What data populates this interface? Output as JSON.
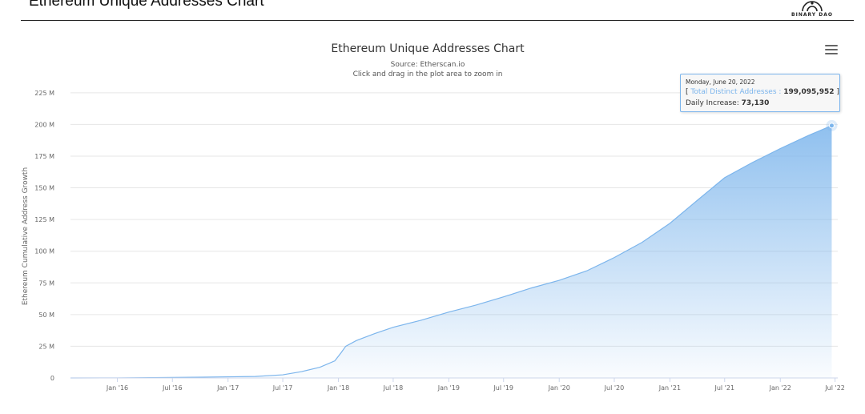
{
  "header": {
    "title": "Ethereum Unique Addresses Chart",
    "logo_text": "BINARY DAO"
  },
  "chart_data": {
    "type": "area",
    "title": "Ethereum Unique Addresses Chart",
    "subtitle": "Source: Etherscan.io",
    "subtitle2": "Click and drag in the plot area to zoom in",
    "xlabel": "",
    "ylabel": "Ethereum Cumulative Address Growth",
    "ylim": [
      0,
      235
    ],
    "y_unit": "M",
    "y_ticks": [
      0,
      25,
      50,
      75,
      100,
      125,
      150,
      175,
      200,
      225
    ],
    "y_tick_labels": [
      "0",
      "25 M",
      "50 M",
      "75 M",
      "100 M",
      "125 M",
      "150 M",
      "175 M",
      "200 M",
      "225 M"
    ],
    "xlim": [
      "2015-07-30",
      "2022-07-10"
    ],
    "x_ticks": [
      "2016-01-01",
      "2016-07-01",
      "2017-01-01",
      "2017-07-01",
      "2018-01-01",
      "2018-07-01",
      "2019-01-01",
      "2019-07-01",
      "2020-01-01",
      "2020-07-01",
      "2021-01-01",
      "2021-07-01",
      "2022-01-01",
      "2022-07-01"
    ],
    "x_tick_labels": [
      "Jan '16",
      "Jul '16",
      "Jan '17",
      "Jul '17",
      "Jan '18",
      "Jul '18",
      "Jan '19",
      "Jul '19",
      "Jan '20",
      "Jul '20",
      "Jan '21",
      "Jul '21",
      "Jan '22",
      "Jul '22"
    ],
    "grid": true,
    "legend": "none",
    "series": [
      {
        "name": "Total Distinct Addresses",
        "color": "#7cb5ec",
        "points": [
          [
            "2015-07-30",
            0.0
          ],
          [
            "2016-01-01",
            0.05
          ],
          [
            "2016-07-01",
            0.4
          ],
          [
            "2017-01-01",
            0.9
          ],
          [
            "2017-04-01",
            1.2
          ],
          [
            "2017-07-01",
            2.5
          ],
          [
            "2017-09-01",
            5.0
          ],
          [
            "2017-11-01",
            8.5
          ],
          [
            "2017-12-20",
            13.5
          ],
          [
            "2018-01-10",
            20.0
          ],
          [
            "2018-01-25",
            25.0
          ],
          [
            "2018-03-01",
            29.5
          ],
          [
            "2018-05-01",
            35.0
          ],
          [
            "2018-07-01",
            40.0
          ],
          [
            "2018-10-01",
            45.5
          ],
          [
            "2019-01-01",
            52.0
          ],
          [
            "2019-04-01",
            57.5
          ],
          [
            "2019-07-01",
            64.0
          ],
          [
            "2019-10-01",
            71.0
          ],
          [
            "2020-01-01",
            77.0
          ],
          [
            "2020-04-01",
            84.5
          ],
          [
            "2020-07-01",
            95.0
          ],
          [
            "2020-10-01",
            107.0
          ],
          [
            "2021-01-01",
            122.0
          ],
          [
            "2021-04-01",
            140.0
          ],
          [
            "2021-07-01",
            158.0
          ],
          [
            "2021-10-01",
            170.0
          ],
          [
            "2022-01-01",
            181.0
          ],
          [
            "2022-04-01",
            191.0
          ],
          [
            "2022-06-20",
            199.1
          ]
        ]
      }
    ],
    "tooltip": {
      "date": "Monday, June 20, 2022",
      "open_bracket": "[ ",
      "series_label": "Total Distinct Addresses",
      "separator": " : ",
      "value_text": "199,095,952",
      "close_bracket": " ]",
      "increase_label": "Daily Increase: ",
      "increase_value": "73,130"
    }
  }
}
